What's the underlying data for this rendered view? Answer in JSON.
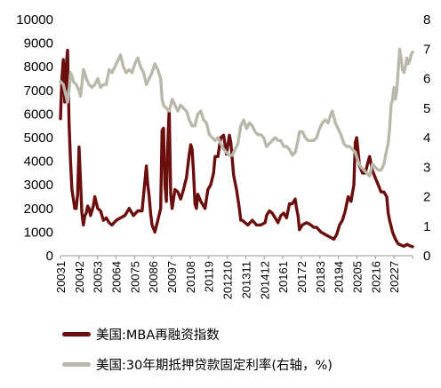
{
  "colors": {
    "refi": "#6b0e0e",
    "rate": "#bab8ab"
  },
  "legend": {
    "refi": "美国:MBA再融资指数",
    "rate": "美国:30年期抵押贷款固定利率(右轴，%)"
  },
  "chart_data": {
    "type": "line",
    "title": "",
    "grid": false,
    "legend_position": "bottom",
    "left_axis": {
      "min": 0,
      "max": 10000,
      "ticks": [
        "0",
        "1000",
        "2000",
        "3000",
        "4000",
        "5000",
        "6000",
        "7000",
        "8000",
        "9000",
        "10000"
      ]
    },
    "right_axis": {
      "min": 0,
      "max": 8,
      "ticks": [
        "0",
        "1",
        "2",
        "3",
        "4",
        "5",
        "6",
        "7",
        "8"
      ]
    },
    "x_tick_labels": [
      "20031",
      "20042",
      "20053",
      "20064",
      "20075",
      "20086",
      "20097",
      "20108",
      "20119",
      "201210",
      "201311",
      "201412",
      "20161",
      "20172",
      "20183",
      "20194",
      "20205",
      "20216",
      "20227"
    ],
    "x_start": "2003-01",
    "x_end": "2023-07",
    "series": [
      {
        "name": "美国:MBA再融资指数",
        "axis": "left",
        "x": [
          "2003-01",
          "2003-02",
          "2003-03",
          "2003-04",
          "2003-05",
          "2003-06",
          "2003-07",
          "2003-08",
          "2003-09",
          "2003-10",
          "2003-11",
          "2003-12",
          "2004-01",
          "2004-02",
          "2004-03",
          "2004-04",
          "2004-05",
          "2004-06",
          "2004-07",
          "2004-08",
          "2004-09",
          "2004-10",
          "2004-11",
          "2004-12",
          "2005-01",
          "2005-03",
          "2005-05",
          "2005-07",
          "2005-09",
          "2005-11",
          "2006-01",
          "2006-04",
          "2006-07",
          "2006-10",
          "2007-01",
          "2007-04",
          "2007-07",
          "2007-10",
          "2008-01",
          "2008-02",
          "2008-03",
          "2008-04",
          "2008-05",
          "2008-07",
          "2008-09",
          "2008-11",
          "2008-12",
          "2009-01",
          "2009-02",
          "2009-03",
          "2009-04",
          "2009-05",
          "2009-06",
          "2009-07",
          "2009-09",
          "2009-11",
          "2010-01",
          "2010-03",
          "2010-05",
          "2010-07",
          "2010-08",
          "2010-09",
          "2010-10",
          "2010-11",
          "2010-12",
          "2011-01",
          "2011-03",
          "2011-06",
          "2011-08",
          "2011-10",
          "2011-12",
          "2012-01",
          "2012-03",
          "2012-05",
          "2012-07",
          "2012-09",
          "2012-11",
          "2012-12",
          "2013-02",
          "2013-04",
          "2013-06",
          "2013-07",
          "2013-08",
          "2013-10",
          "2013-12",
          "2014-03",
          "2014-06",
          "2014-09",
          "2014-12",
          "2015-01",
          "2015-03",
          "2015-05",
          "2015-07",
          "2015-09",
          "2015-11",
          "2016-01",
          "2016-03",
          "2016-05",
          "2016-07",
          "2016-09",
          "2016-10",
          "2016-11",
          "2016-12",
          "2017-02",
          "2017-05",
          "2017-08",
          "2017-10",
          "2017-12",
          "2018-03",
          "2018-06",
          "2018-09",
          "2018-12",
          "2019-02",
          "2019-04",
          "2019-06",
          "2019-08",
          "2019-10",
          "2019-12",
          "2020-02",
          "2020-03",
          "2020-04",
          "2020-06",
          "2020-08",
          "2020-10",
          "2020-12",
          "2021-01",
          "2021-03",
          "2021-05",
          "2021-07",
          "2021-09",
          "2021-11",
          "2022-01",
          "2022-02",
          "2022-03",
          "2022-05",
          "2022-07",
          "2022-09",
          "2022-11",
          "2023-01",
          "2023-03",
          "2023-05",
          "2023-07"
        ],
        "values": [
          5800,
          7500,
          8300,
          6500,
          8000,
          8700,
          5600,
          4000,
          2800,
          2400,
          2000,
          2000,
          2600,
          4600,
          3200,
          1800,
          1300,
          1700,
          1800,
          2100,
          2000,
          1700,
          1900,
          2100,
          2500,
          2000,
          1900,
          1500,
          1600,
          1400,
          1300,
          1500,
          1600,
          1700,
          2000,
          1700,
          1900,
          1900,
          3800,
          3000,
          2500,
          1800,
          1300,
          1000,
          1500,
          2000,
          5300,
          5400,
          3000,
          2300,
          4700,
          6200,
          2600,
          2000,
          2800,
          2700,
          2400,
          2800,
          3300,
          4300,
          4700,
          4500,
          3500,
          2200,
          2000,
          2600,
          2300,
          2000,
          2800,
          3000,
          3500,
          4200,
          4200,
          5000,
          5100,
          4300,
          5100,
          4800,
          3400,
          2800,
          2000,
          1500,
          1500,
          1400,
          1300,
          1500,
          1300,
          1300,
          1400,
          1700,
          1900,
          1800,
          1600,
          1400,
          1700,
          1800,
          1600,
          2200,
          2200,
          2400,
          2000,
          1700,
          1100,
          1300,
          1400,
          1300,
          1200,
          1200,
          1000,
          900,
          800,
          700,
          900,
          1300,
          1500,
          1900,
          2500,
          2300,
          3000,
          4800,
          5000,
          3800,
          3500,
          3500,
          4000,
          4200,
          3600,
          3300,
          3000,
          2700,
          2700,
          2500,
          1800,
          1500,
          1000,
          700,
          500,
          450,
          400,
          480,
          420,
          380
        ]
      },
      {
        "name": "美国:30年期抵押贷款固定利率(右轴，%)",
        "axis": "right",
        "x": [
          "2003-01",
          "2003-03",
          "2003-05",
          "2003-06",
          "2003-07",
          "2003-08",
          "2003-09",
          "2003-10",
          "2003-12",
          "2004-02",
          "2004-03",
          "2004-04",
          "2004-05",
          "2004-06",
          "2004-07",
          "2004-09",
          "2004-11",
          "2005-01",
          "2005-03",
          "2005-05",
          "2005-07",
          "2005-09",
          "2005-11",
          "2006-01",
          "2006-03",
          "2006-05",
          "2006-07",
          "2006-09",
          "2006-11",
          "2007-01",
          "2007-03",
          "2007-05",
          "2007-07",
          "2007-09",
          "2007-11",
          "2008-01",
          "2008-03",
          "2008-05",
          "2008-07",
          "2008-09",
          "2008-11",
          "2008-12",
          "2009-01",
          "2009-03",
          "2009-05",
          "2009-07",
          "2009-09",
          "2009-11",
          "2010-01",
          "2010-03",
          "2010-05",
          "2010-07",
          "2010-09",
          "2010-11",
          "2011-01",
          "2011-03",
          "2011-05",
          "2011-07",
          "2011-09",
          "2011-11",
          "2012-01",
          "2012-03",
          "2012-05",
          "2012-07",
          "2012-09",
          "2012-11",
          "2013-01",
          "2013-03",
          "2013-05",
          "2013-07",
          "2013-09",
          "2013-11",
          "2014-01",
          "2014-03",
          "2014-05",
          "2014-07",
          "2014-09",
          "2014-11",
          "2015-01",
          "2015-03",
          "2015-05",
          "2015-07",
          "2015-09",
          "2015-11",
          "2016-01",
          "2016-03",
          "2016-05",
          "2016-07",
          "2016-09",
          "2016-11",
          "2016-12",
          "2017-02",
          "2017-04",
          "2017-06",
          "2017-08",
          "2017-10",
          "2017-12",
          "2018-02",
          "2018-04",
          "2018-06",
          "2018-08",
          "2018-10",
          "2018-11",
          "2019-01",
          "2019-03",
          "2019-05",
          "2019-07",
          "2019-09",
          "2019-11",
          "2020-01",
          "2020-03",
          "2020-05",
          "2020-07",
          "2020-09",
          "2020-11",
          "2021-01",
          "2021-03",
          "2021-05",
          "2021-07",
          "2021-09",
          "2021-11",
          "2022-01",
          "2022-02",
          "2022-03",
          "2022-04",
          "2022-05",
          "2022-06",
          "2022-07",
          "2022-08",
          "2022-09",
          "2022-10",
          "2022-11",
          "2022-12",
          "2023-01",
          "2023-02",
          "2023-03",
          "2023-04",
          "2023-05",
          "2023-06",
          "2023-07"
        ],
        "values": [
          5.9,
          5.8,
          5.4,
          5.2,
          5.6,
          6.2,
          6.1,
          5.9,
          5.8,
          5.6,
          5.4,
          5.8,
          6.3,
          6.2,
          6.0,
          5.8,
          5.7,
          5.8,
          6.0,
          5.7,
          5.8,
          5.8,
          6.3,
          6.2,
          6.4,
          6.6,
          6.8,
          6.4,
          6.2,
          6.3,
          6.2,
          6.5,
          6.7,
          6.4,
          6.2,
          5.8,
          6.0,
          6.2,
          6.5,
          6.3,
          6.0,
          5.3,
          5.1,
          5.0,
          4.9,
          5.3,
          5.1,
          4.9,
          5.1,
          5.0,
          4.9,
          4.6,
          4.4,
          4.4,
          4.8,
          4.9,
          4.6,
          4.5,
          4.1,
          4.0,
          3.9,
          4.0,
          3.8,
          3.6,
          3.5,
          3.4,
          3.4,
          3.6,
          3.8,
          4.4,
          4.6,
          4.3,
          4.5,
          4.4,
          4.2,
          4.1,
          4.1,
          4.0,
          3.7,
          3.8,
          3.9,
          4.0,
          3.9,
          3.9,
          3.7,
          3.7,
          3.6,
          3.4,
          3.5,
          3.9,
          4.2,
          4.2,
          4.0,
          3.9,
          3.9,
          3.9,
          4.0,
          4.3,
          4.5,
          4.6,
          4.5,
          4.8,
          4.9,
          4.5,
          4.3,
          4.1,
          3.8,
          3.7,
          3.7,
          3.6,
          3.5,
          3.2,
          3.0,
          2.9,
          2.8,
          2.7,
          3.1,
          3.0,
          2.9,
          2.9,
          3.1,
          3.6,
          3.8,
          4.3,
          5.1,
          5.3,
          5.7,
          5.3,
          5.6,
          6.3,
          7.0,
          6.7,
          6.3,
          6.2,
          6.4,
          6.7,
          6.5,
          6.6,
          6.8,
          6.9
        ]
      }
    ]
  }
}
